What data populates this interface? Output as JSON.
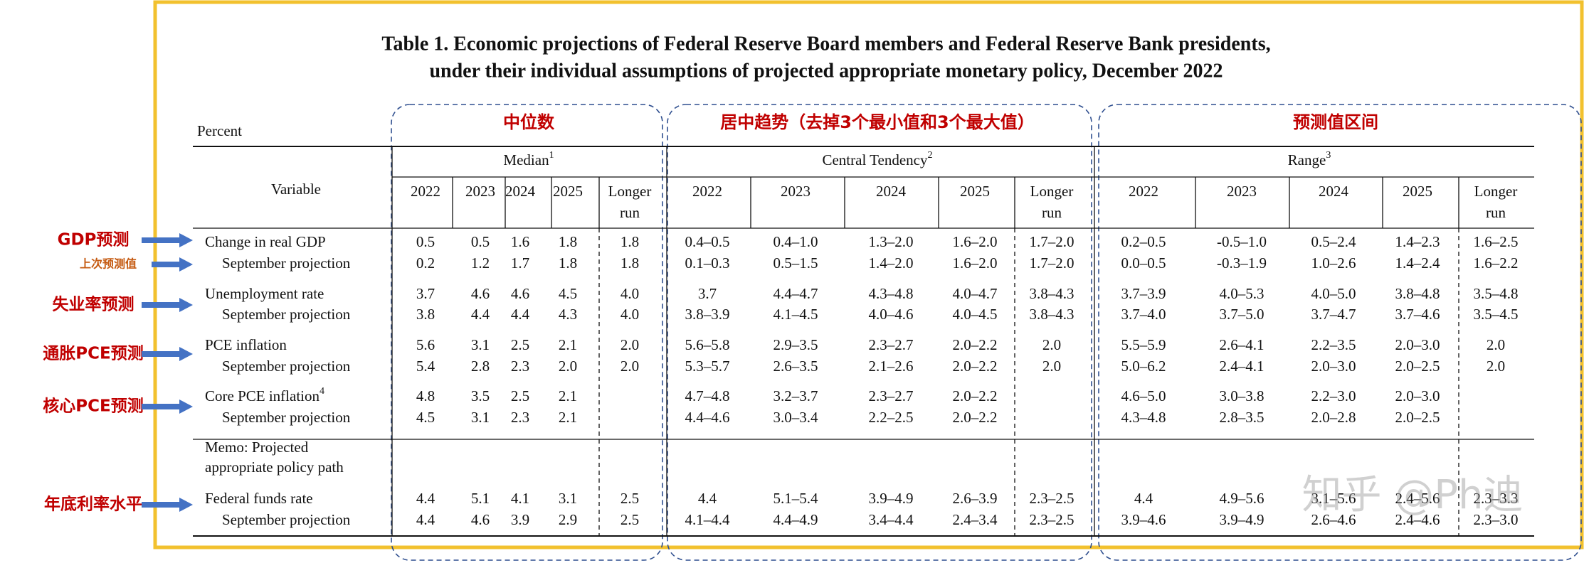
{
  "title": [
    "Table 1. Economic projections of Federal Reserve Board members and Federal Reserve Bank presidents,",
    "under their individual assumptions of projected appropriate monetary policy, December 2022"
  ],
  "units": "Percent",
  "variable_header": "Variable",
  "highlights": [
    "中位数",
    "居中趋势（去掉3个最小值和3个最大值）",
    "预测值区间"
  ],
  "annotations": [
    "GDP预测",
    "上次预测值",
    "失业率预测",
    "通胀PCE预测",
    "核心PCE预测",
    "年底利率水平"
  ],
  "watermark": "知乎 @Ph迪",
  "groups": [
    {
      "name": "Median",
      "note": "1",
      "columns": [
        [
          "2022"
        ],
        [
          "2023"
        ],
        [
          "2024"
        ],
        [
          "2025"
        ],
        [
          "Longer",
          "run"
        ]
      ]
    },
    {
      "name": "Central Tendency",
      "note": "2",
      "columns": [
        [
          "2022"
        ],
        [
          "2023"
        ],
        [
          "2024"
        ],
        [
          "2025"
        ],
        [
          "Longer",
          "run"
        ]
      ]
    },
    {
      "name": "Range",
      "note": "3",
      "columns": [
        [
          "2022"
        ],
        [
          "2023"
        ],
        [
          "2024"
        ],
        [
          "2025"
        ],
        [
          "Longer",
          "run"
        ]
      ]
    }
  ],
  "rows": [
    {
      "label": "Change in real GDP",
      "cells": [
        [
          "0.5",
          "0.5",
          "1.6",
          "1.8",
          "1.8"
        ],
        [
          "0.4–0.5",
          "0.4–1.0",
          "1.3–2.0",
          "1.6–2.0",
          "1.7–2.0"
        ],
        [
          "0.2–0.5",
          "-0.5–1.0",
          "0.5–2.4",
          "1.4–2.3",
          "1.6–2.5"
        ]
      ]
    },
    {
      "label": "September projection",
      "cells": [
        [
          "0.2",
          "1.2",
          "1.7",
          "1.8",
          "1.8"
        ],
        [
          "0.1–0.3",
          "0.5–1.5",
          "1.4–2.0",
          "1.6–2.0",
          "1.7–2.0"
        ],
        [
          "0.0–0.5",
          "-0.3–1.9",
          "1.0–2.6",
          "1.4–2.4",
          "1.6–2.2"
        ]
      ]
    },
    {
      "label": "Unemployment rate",
      "cells": [
        [
          "3.7",
          "4.6",
          "4.6",
          "4.5",
          "4.0"
        ],
        [
          "3.7",
          "4.4–4.7",
          "4.3–4.8",
          "4.0–4.7",
          "3.8–4.3"
        ],
        [
          "3.7–3.9",
          "4.0–5.3",
          "4.0–5.0",
          "3.8–4.8",
          "3.5–4.8"
        ]
      ]
    },
    {
      "label": "September projection",
      "cells": [
        [
          "3.8",
          "4.4",
          "4.4",
          "4.3",
          "4.0"
        ],
        [
          "3.8–3.9",
          "4.1–4.5",
          "4.0–4.6",
          "4.0–4.5",
          "3.8–4.3"
        ],
        [
          "3.7–4.0",
          "3.7–5.0",
          "3.7–4.7",
          "3.7–4.6",
          "3.5–4.5"
        ]
      ]
    },
    {
      "label": "PCE inflation",
      "cells": [
        [
          "5.6",
          "3.1",
          "2.5",
          "2.1",
          "2.0"
        ],
        [
          "5.6–5.8",
          "2.9–3.5",
          "2.3–2.7",
          "2.0–2.2",
          "2.0"
        ],
        [
          "5.5–5.9",
          "2.6–4.1",
          "2.2–3.5",
          "2.0–3.0",
          "2.0"
        ]
      ]
    },
    {
      "label": "September projection",
      "cells": [
        [
          "5.4",
          "2.8",
          "2.3",
          "2.0",
          "2.0"
        ],
        [
          "5.3–5.7",
          "2.6–3.5",
          "2.1–2.6",
          "2.0–2.2",
          "2.0"
        ],
        [
          "5.0–6.2",
          "2.4–4.1",
          "2.0–3.0",
          "2.0–2.5",
          "2.0"
        ]
      ]
    },
    {
      "label": "Core PCE inflation",
      "note": "4",
      "cells": [
        [
          "4.8",
          "3.5",
          "2.5",
          "2.1",
          null
        ],
        [
          "4.7–4.8",
          "3.2–3.7",
          "2.3–2.7",
          "2.0–2.2",
          null
        ],
        [
          "4.6–5.0",
          "3.0–3.8",
          "2.2–3.0",
          "2.0–3.0",
          null
        ]
      ]
    },
    {
      "label": "September projection",
      "cells": [
        [
          "4.5",
          "3.1",
          "2.3",
          "2.1",
          null
        ],
        [
          "4.4–4.6",
          "3.0–3.4",
          "2.2–2.5",
          "2.0–2.2",
          null
        ],
        [
          "4.3–4.8",
          "2.8–3.5",
          "2.0–2.8",
          "2.0–2.5",
          null
        ]
      ]
    },
    {
      "label_lines": [
        "Memo: Projected",
        "appropriate policy path"
      ]
    },
    {
      "label": "Federal funds rate",
      "cells": [
        [
          "4.4",
          "5.1",
          "4.1",
          "3.1",
          "2.5"
        ],
        [
          "4.4",
          "5.1–5.4",
          "3.9–4.9",
          "2.6–3.9",
          "2.3–2.5"
        ],
        [
          "4.4",
          "4.9–5.6",
          "3.1–5.6",
          "2.4–5.6",
          "2.3–3.3"
        ]
      ]
    },
    {
      "label": "September projection",
      "cells": [
        [
          "4.4",
          "4.6",
          "3.9",
          "2.9",
          "2.5"
        ],
        [
          "4.1–4.4",
          "4.4–4.9",
          "3.4–4.4",
          "2.4–3.4",
          "2.3–2.5"
        ],
        [
          "3.9–4.6",
          "3.9–4.9",
          "2.6–4.6",
          "2.4–4.6",
          "2.3–3.0"
        ]
      ]
    }
  ]
}
